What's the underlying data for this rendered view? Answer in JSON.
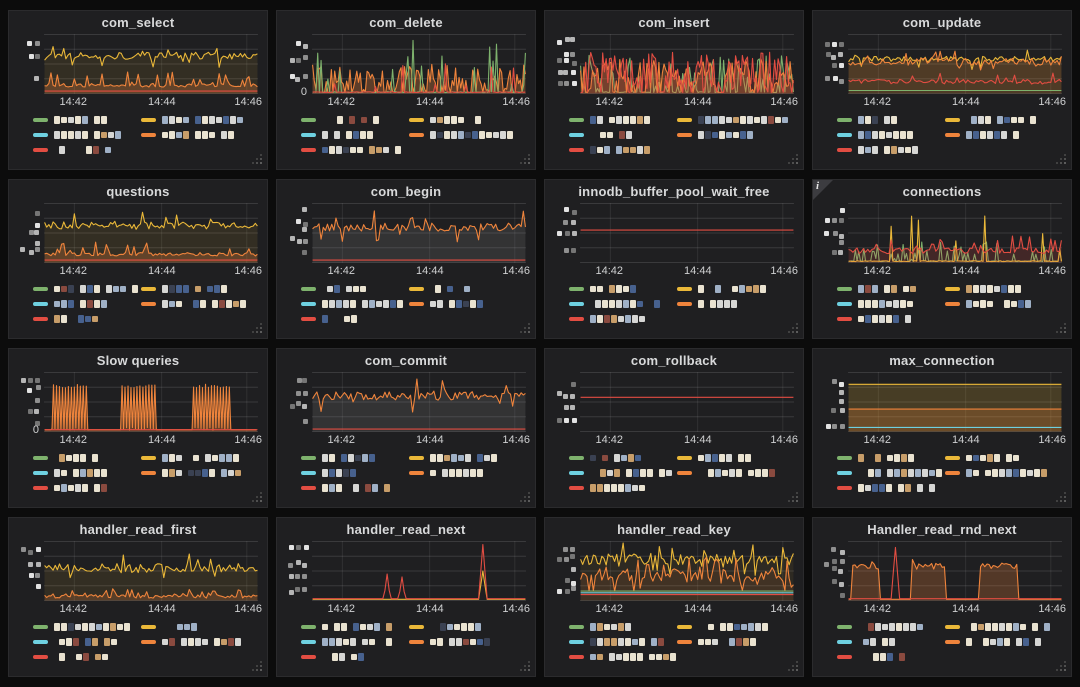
{
  "dashboard": {
    "bg_color": "#0c0c0c",
    "panel_bg_color": "#1f1f21",
    "title_color": "#d8d9da",
    "axis_text_color": "#cfd0d1",
    "grid_line_color": "rgba(255,255,255,0.12)",
    "x_ticks": [
      "14:42",
      "14:44",
      "14:46"
    ],
    "info_icon_label": "i",
    "series_palette": {
      "green": "#7EB26D",
      "yellow": "#EAB839",
      "cyan": "#6ED0E0",
      "orange": "#EF843C",
      "red": "#E24D42"
    },
    "redaction_palette": [
      "#e9e2d0",
      "#d6d6d4",
      "#9fb0c6",
      "#47618e",
      "#c79d69",
      "#8a4a3f",
      "#3a4152"
    ],
    "yaxis_redaction_palette": [
      "#e2e2e2",
      "#b5b5b5",
      "#8f8f8f",
      "#757575"
    ]
  },
  "panels": [
    {
      "title": "com_select",
      "info_corner": false,
      "legend": [
        {
          "color_key": "green",
          "label_redacted": true
        },
        {
          "color_key": "yellow",
          "label_redacted": true
        },
        {
          "color_key": "cyan",
          "label_redacted": true
        },
        {
          "color_key": "orange",
          "label_redacted": true
        },
        {
          "color_key": "red",
          "label_redacted": true
        }
      ]
    },
    {
      "title": "com_delete",
      "info_corner": false,
      "y_bottom_label": "0",
      "legend": [
        {
          "color_key": "green",
          "label_redacted": true
        },
        {
          "color_key": "yellow",
          "label_redacted": true
        },
        {
          "color_key": "cyan",
          "label_redacted": true
        },
        {
          "color_key": "orange",
          "label_redacted": true
        },
        {
          "color_key": "red",
          "label_redacted": true
        }
      ]
    },
    {
      "title": "com_insert",
      "info_corner": false,
      "legend": [
        {
          "color_key": "green",
          "label_redacted": true
        },
        {
          "color_key": "yellow",
          "label_redacted": true
        },
        {
          "color_key": "cyan",
          "label_redacted": true
        },
        {
          "color_key": "orange",
          "label_redacted": true
        },
        {
          "color_key": "red",
          "label_redacted": true
        }
      ]
    },
    {
      "title": "com_update",
      "info_corner": false,
      "legend": [
        {
          "color_key": "green",
          "label_redacted": true
        },
        {
          "color_key": "yellow",
          "label_redacted": true
        },
        {
          "color_key": "cyan",
          "label_redacted": true
        },
        {
          "color_key": "orange",
          "label_redacted": true
        },
        {
          "color_key": "red",
          "label_redacted": true
        }
      ]
    },
    {
      "title": "questions",
      "info_corner": false,
      "legend": [
        {
          "color_key": "green",
          "label_redacted": true
        },
        {
          "color_key": "yellow",
          "label_redacted": true
        },
        {
          "color_key": "cyan",
          "label_redacted": true
        },
        {
          "color_key": "orange",
          "label_redacted": true
        },
        {
          "color_key": "red",
          "label_redacted": true
        }
      ]
    },
    {
      "title": "com_begin",
      "info_corner": false,
      "legend": [
        {
          "color_key": "green",
          "label_redacted": true
        },
        {
          "color_key": "yellow",
          "label_redacted": true
        },
        {
          "color_key": "cyan",
          "label_redacted": true
        },
        {
          "color_key": "orange",
          "label_redacted": true
        },
        {
          "color_key": "red",
          "label_redacted": true
        }
      ]
    },
    {
      "title": "innodb_buffer_pool_wait_free",
      "info_corner": false,
      "legend": [
        {
          "color_key": "green",
          "label_redacted": true
        },
        {
          "color_key": "yellow",
          "label_redacted": true
        },
        {
          "color_key": "cyan",
          "label_redacted": true
        },
        {
          "color_key": "orange",
          "label_redacted": true
        },
        {
          "color_key": "red",
          "label_redacted": true
        }
      ]
    },
    {
      "title": "connections",
      "info_corner": true,
      "legend": [
        {
          "color_key": "green",
          "label_redacted": true
        },
        {
          "color_key": "yellow",
          "label_redacted": true
        },
        {
          "color_key": "cyan",
          "label_redacted": true
        },
        {
          "color_key": "orange",
          "label_redacted": true
        },
        {
          "color_key": "red",
          "label_redacted": true
        }
      ]
    },
    {
      "title": "Slow queries",
      "info_corner": false,
      "y_bottom_label": "0",
      "legend": [
        {
          "color_key": "green",
          "label_redacted": true
        },
        {
          "color_key": "yellow",
          "label_redacted": true
        },
        {
          "color_key": "cyan",
          "label_redacted": true
        },
        {
          "color_key": "orange",
          "label_redacted": true
        },
        {
          "color_key": "red",
          "label_redacted": true
        }
      ]
    },
    {
      "title": "com_commit",
      "info_corner": false,
      "legend": [
        {
          "color_key": "green",
          "label_redacted": true
        },
        {
          "color_key": "yellow",
          "label_redacted": true
        },
        {
          "color_key": "cyan",
          "label_redacted": true
        },
        {
          "color_key": "orange",
          "label_redacted": true
        },
        {
          "color_key": "red",
          "label_redacted": true
        }
      ]
    },
    {
      "title": "com_rollback",
      "info_corner": false,
      "legend": [
        {
          "color_key": "green",
          "label_redacted": true
        },
        {
          "color_key": "yellow",
          "label_redacted": true
        },
        {
          "color_key": "cyan",
          "label_redacted": true
        },
        {
          "color_key": "orange",
          "label_redacted": true
        },
        {
          "color_key": "red",
          "label_redacted": true
        }
      ]
    },
    {
      "title": "max_connection",
      "info_corner": false,
      "legend": [
        {
          "color_key": "green",
          "label_redacted": true
        },
        {
          "color_key": "yellow",
          "label_redacted": true
        },
        {
          "color_key": "cyan",
          "label_redacted": true
        },
        {
          "color_key": "orange",
          "label_redacted": true
        },
        {
          "color_key": "red",
          "label_redacted": true
        }
      ]
    },
    {
      "title": "handler_read_first",
      "info_corner": false,
      "legend": [
        {
          "color_key": "green",
          "label_redacted": true
        },
        {
          "color_key": "yellow",
          "label_redacted": true
        },
        {
          "color_key": "cyan",
          "label_redacted": true
        },
        {
          "color_key": "orange",
          "label_redacted": true
        },
        {
          "color_key": "red",
          "label_redacted": true
        }
      ]
    },
    {
      "title": "handler_read_next",
      "info_corner": false,
      "legend": [
        {
          "color_key": "green",
          "label_redacted": true
        },
        {
          "color_key": "yellow",
          "label_redacted": true
        },
        {
          "color_key": "cyan",
          "label_redacted": true
        },
        {
          "color_key": "orange",
          "label_redacted": true
        },
        {
          "color_key": "red",
          "label_redacted": true
        }
      ]
    },
    {
      "title": "handler_read_key",
      "info_corner": false,
      "legend": [
        {
          "color_key": "green",
          "label_redacted": true
        },
        {
          "color_key": "yellow",
          "label_redacted": true
        },
        {
          "color_key": "cyan",
          "label_redacted": true
        },
        {
          "color_key": "orange",
          "label_redacted": true
        },
        {
          "color_key": "red",
          "label_redacted": true
        }
      ]
    },
    {
      "title": "Handler_read_rnd_next",
      "info_corner": false,
      "legend": [
        {
          "color_key": "green",
          "label_redacted": true
        },
        {
          "color_key": "yellow",
          "label_redacted": true
        },
        {
          "color_key": "cyan",
          "label_redacted": true
        },
        {
          "color_key": "orange",
          "label_redacted": true
        },
        {
          "color_key": "red",
          "label_redacted": true
        }
      ]
    }
  ],
  "chart_data": {
    "type": "line",
    "x_ticks": [
      "14:42",
      "14:44",
      "14:46"
    ],
    "x_range": [
      "14:41",
      "14:46"
    ],
    "y_axis": "redacted (tick labels pixel-blurred in source)",
    "legend_labels": "redacted (pixel-blurred in source)",
    "value_encoding": "series values are normalized plot fractions: 0 = top of plot, 1 = bottom; absolute values not readable in source",
    "charts": [
      {
        "title": "com_select",
        "series": [
          {
            "color": "#EAB839",
            "pattern": "noisy",
            "base": 0.36,
            "amp": 0.06,
            "spike_prob": 0.1,
            "spike_amp": 0.2,
            "spike_dir": 0,
            "fill_opacity": 0.1
          },
          {
            "color": "#EF843C",
            "pattern": "noisy",
            "base": 0.86,
            "amp": 0.03,
            "spike_prob": 0.18,
            "spike_amp": 0.2,
            "fill_opacity": 0.25
          },
          {
            "color": "#E24D42",
            "pattern": "flat",
            "base": 0.96
          }
        ]
      },
      {
        "title": "com_delete",
        "series": [
          {
            "color": "#EF843C",
            "pattern": "bottom-spikes",
            "density": 0.75,
            "max": 0.45,
            "fill_opacity": 0.3
          },
          {
            "color": "#7EB26D",
            "pattern": "bottom-spikes",
            "density": 0.1,
            "max": 0.85
          },
          {
            "color": "#E24D42",
            "pattern": "bottom-spikes",
            "density": 0.04,
            "max": 0.5
          }
        ]
      },
      {
        "title": "com_insert",
        "series": [
          {
            "color": "#7EB26D",
            "pattern": "bottom-spikes",
            "density": 0.35,
            "max": 0.6
          },
          {
            "color": "#EF843C",
            "pattern": "bottom-spikes",
            "density": 0.85,
            "max": 0.55,
            "fill_opacity": 0.3
          },
          {
            "color": "#E24D42",
            "pattern": "bottom-spikes",
            "density": 0.85,
            "max": 0.65,
            "fill_opacity": 0.18
          }
        ]
      },
      {
        "title": "com_update",
        "series": [
          {
            "color": "#EAB839",
            "pattern": "noisy",
            "base": 0.42,
            "amp": 0.05,
            "spike_prob": 0.1,
            "spike_amp": 0.15,
            "spike_dir": 0,
            "fill_opacity": 0.1
          },
          {
            "color": "#EF843C",
            "pattern": "noisy",
            "base": 0.46,
            "amp": 0.06,
            "spike_prob": 0.12,
            "spike_amp": 0.12,
            "spike_dir": 0,
            "fill_opacity": 0.15
          },
          {
            "color": "#7EB26D",
            "pattern": "flat",
            "base": 0.95
          },
          {
            "color": "#E24D42",
            "pattern": "noisy",
            "base": 0.8,
            "amp": 0.04,
            "spike_prob": 0.15,
            "spike_amp": 0.12
          }
        ]
      },
      {
        "title": "questions",
        "series": [
          {
            "color": "#EAB839",
            "pattern": "noisy",
            "base": 0.37,
            "amp": 0.06,
            "spike_prob": 0.1,
            "spike_amp": 0.2,
            "spike_dir": 0,
            "fill_opacity": 0.1
          },
          {
            "color": "#EF843C",
            "pattern": "noisy",
            "base": 0.86,
            "amp": 0.03,
            "spike_prob": 0.18,
            "spike_amp": 0.2,
            "fill_opacity": 0.25
          },
          {
            "color": "#E24D42",
            "pattern": "flat",
            "base": 0.96
          }
        ]
      },
      {
        "title": "com_begin",
        "series": [
          {
            "color": "#EF843C",
            "pattern": "noisy",
            "base": 0.4,
            "amp": 0.07,
            "spike_prob": 0.12,
            "spike_amp": 0.22,
            "spike_dir": 0,
            "fill": "#9a9a9a",
            "fill_opacity": 0.16
          },
          {
            "color": "#E24D42",
            "pattern": "flat",
            "base": 0.96
          }
        ]
      },
      {
        "title": "innodb_buffer_pool_wait_free",
        "series": [
          {
            "color": "#E24D42",
            "pattern": "flat",
            "base": 0.45
          }
        ]
      },
      {
        "title": "connections",
        "series": [
          {
            "color": "#7EB26D",
            "pattern": "bottom-spikes",
            "density": 0.3,
            "max": 0.3
          },
          {
            "color": "#EAB839",
            "pattern": "bottom-spikes",
            "density": 0.06,
            "max": 0.75
          },
          {
            "color": "#E24D42",
            "pattern": "noisy",
            "base": 0.8,
            "amp": 0.05,
            "spike_prob": 0.25,
            "spike_amp": 0.22,
            "fill_opacity": 0.18
          }
        ]
      },
      {
        "title": "Slow queries",
        "series": [
          {
            "color": "#EF843C",
            "pattern": "square-bursts",
            "bursts": [
              [
                0.03,
                0.21
              ],
              [
                0.36,
                0.52
              ],
              [
                0.7,
                0.87
              ]
            ],
            "high": 0.2,
            "fill_opacity": 0.32
          },
          {
            "color": "#E24D42",
            "pattern": "flat",
            "base": 0.97
          }
        ]
      },
      {
        "title": "com_commit",
        "series": [
          {
            "color": "#EF843C",
            "pattern": "noisy",
            "base": 0.4,
            "amp": 0.07,
            "spike_prob": 0.12,
            "spike_amp": 0.22,
            "spike_dir": 0,
            "fill": "#9a9a9a",
            "fill_opacity": 0.16
          },
          {
            "color": "#E24D42",
            "pattern": "flat",
            "base": 0.96
          }
        ]
      },
      {
        "title": "com_rollback",
        "series": [
          {
            "color": "#E24D42",
            "pattern": "flat",
            "base": 0.42
          }
        ]
      },
      {
        "title": "max_connection",
        "series": [
          {
            "color": "#EAB839",
            "pattern": "flat",
            "base": 0.2,
            "fill_opacity": 0.2
          },
          {
            "color": "#EF843C",
            "pattern": "flat",
            "base": 0.62,
            "fill_opacity": 0.22
          },
          {
            "color": "#6ED0E0",
            "pattern": "flat",
            "base": 0.93
          }
        ]
      },
      {
        "title": "handler_read_first",
        "series": [
          {
            "color": "#EAB839",
            "pattern": "noisy",
            "base": 0.45,
            "amp": 0.08,
            "spike_prob": 0.1,
            "spike_amp": 0.18,
            "spike_dir": 0,
            "fill_opacity": 0.1
          },
          {
            "color": "#EF843C",
            "pattern": "noisy",
            "base": 0.93,
            "amp": 0.03,
            "spike_prob": 0.2,
            "spike_amp": 0.1,
            "fill_opacity": 0.2
          }
        ]
      },
      {
        "title": "handler_read_next",
        "series": [
          {
            "color": "#EAB839",
            "pattern": "flat-spikes",
            "base": 0.98,
            "events": [
              {
                "x": 0.8,
                "peak": 0.5,
                "w": 0.02
              }
            ]
          },
          {
            "color": "#E24D42",
            "pattern": "flat-spikes",
            "base": 0.97,
            "events": [
              {
                "x": 0.35,
                "peak": 0.55,
                "w": 0.015
              },
              {
                "x": 0.42,
                "peak": 0.6,
                "w": 0.015
              },
              {
                "x": 0.8,
                "peak": 0.05,
                "w": 0.02
              }
            ]
          }
        ]
      },
      {
        "title": "handler_read_key",
        "series": [
          {
            "color": "#EAB839",
            "pattern": "noisy",
            "base": 0.3,
            "amp": 0.1,
            "spike_prob": 0.2,
            "spike_amp": 0.18,
            "spike_dir": 0,
            "fill_opacity": 0.08
          },
          {
            "color": "#EF843C",
            "pattern": "noisy",
            "base": 0.58,
            "amp": 0.1,
            "spike_prob": 0.25,
            "spike_amp": 0.22,
            "spike_dir": 0,
            "fill_opacity": 0.1
          },
          {
            "color": "#7EB26D",
            "pattern": "flat",
            "base": 0.84
          },
          {
            "color": "#6ED0E0",
            "pattern": "flat",
            "base": 0.87
          },
          {
            "color": "#E24D42",
            "pattern": "flat",
            "base": 0.9
          }
        ]
      },
      {
        "title": "Handler_read_rnd_next",
        "series": [
          {
            "color": "#EF843C",
            "pattern": "plateau-bursts",
            "bursts": [
              [
                0.02,
                0.14
              ],
              [
                0.3,
                0.46
              ],
              [
                0.62,
                0.8
              ]
            ],
            "level": 0.42,
            "fill_opacity": 0.25
          },
          {
            "color": "#E24D42",
            "pattern": "flat-spikes",
            "base": 0.97,
            "events": [
              {
                "x": 0.22,
                "peak": 0.1,
                "w": 0.02
              }
            ]
          }
        ]
      }
    ]
  }
}
